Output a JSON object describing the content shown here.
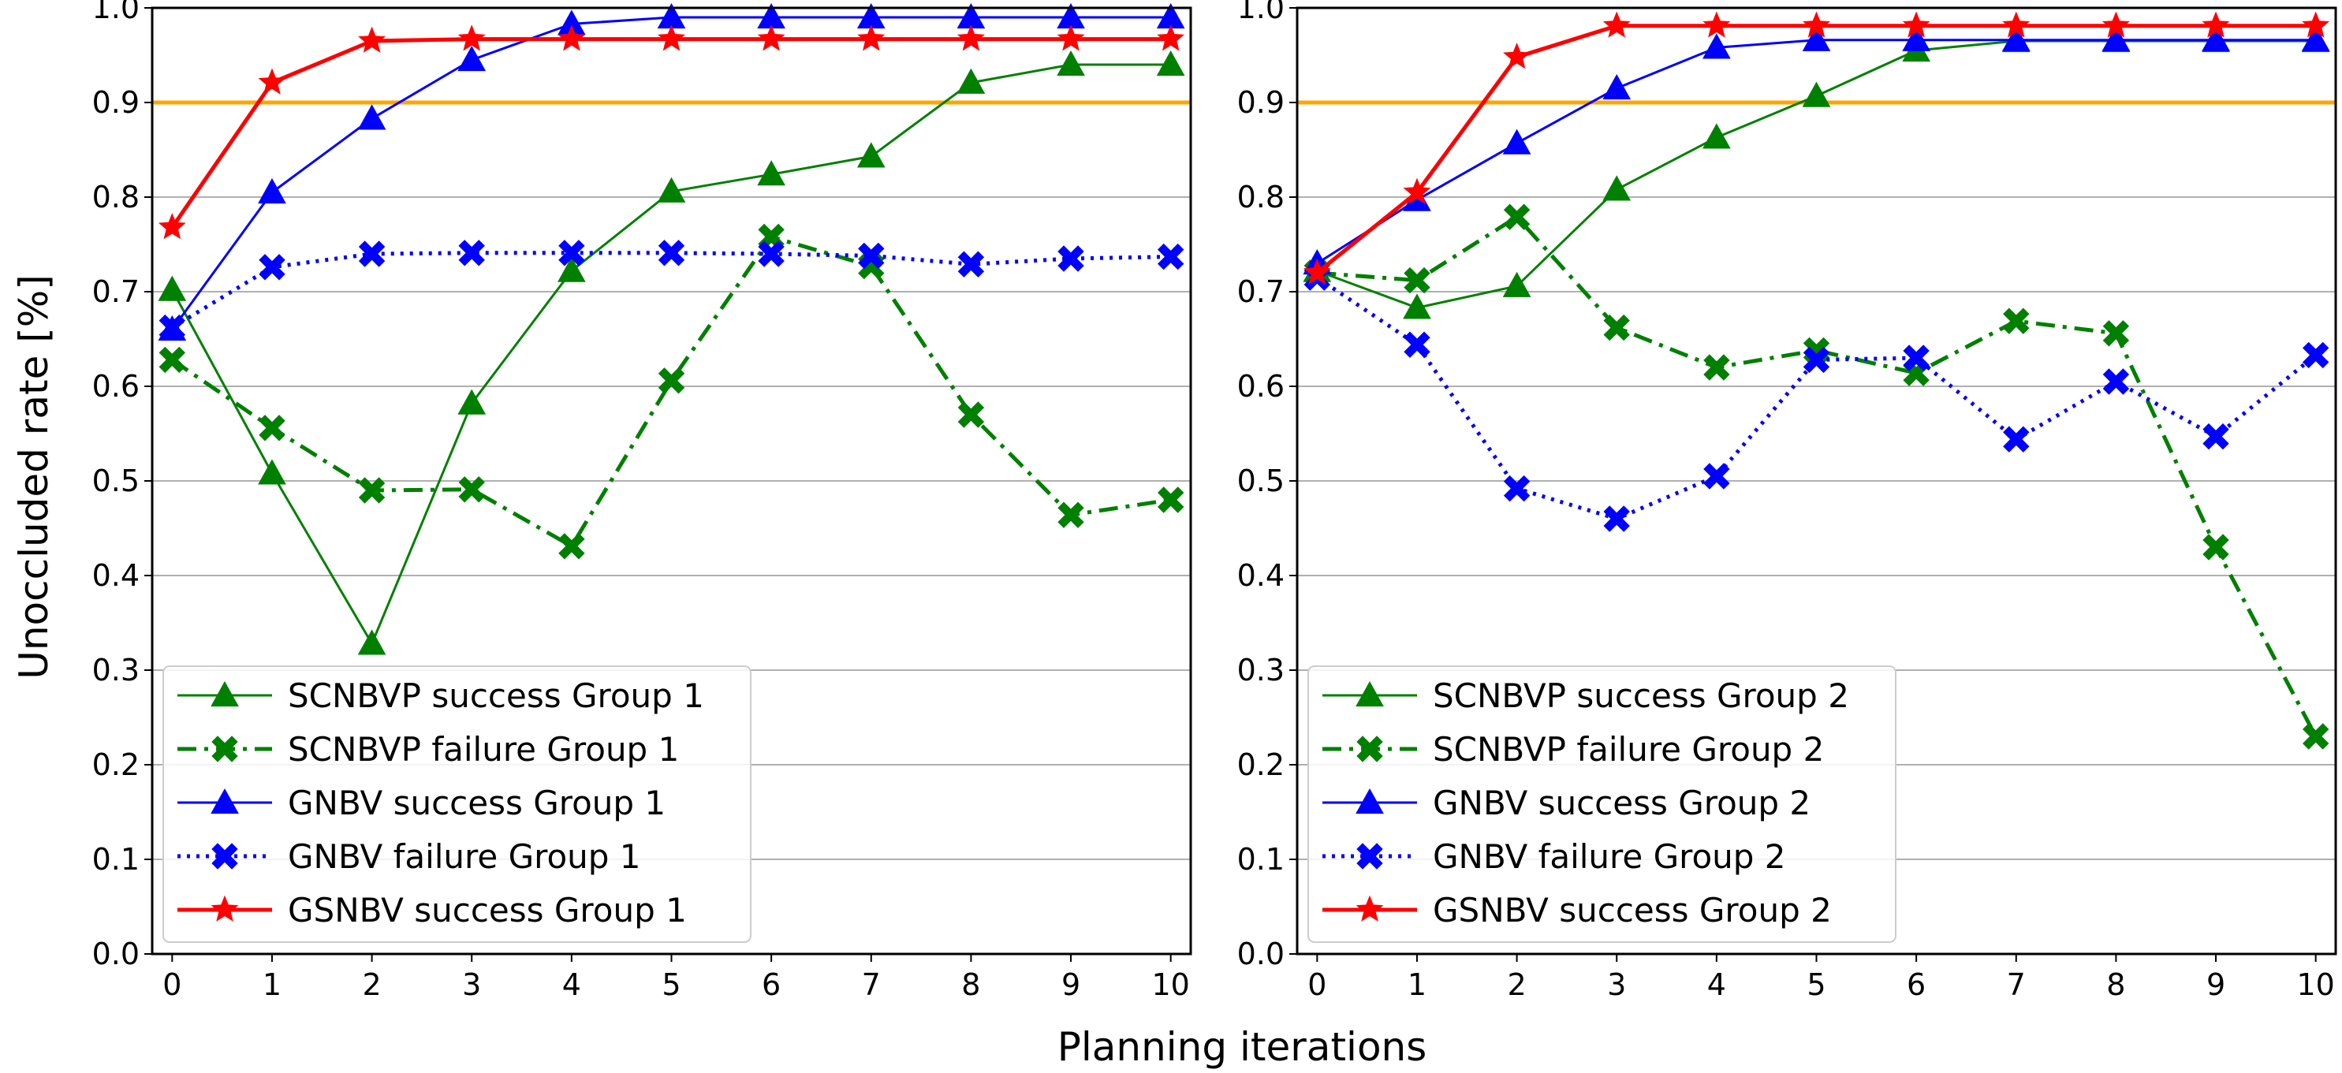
{
  "figure": {
    "ylabel": "Unoccluded rate [%]",
    "xlabel": "Planning iterations"
  },
  "chart_data": [
    {
      "type": "line",
      "title": "",
      "xlabel": "Planning iterations",
      "ylabel": "Unoccluded rate [%]",
      "xlim": [
        -0.2,
        10.2
      ],
      "ylim": [
        0.0,
        1.0
      ],
      "x": [
        0,
        1,
        2,
        3,
        4,
        5,
        6,
        7,
        8,
        9,
        10
      ],
      "xticks": [
        "0",
        "1",
        "2",
        "3",
        "4",
        "5",
        "6",
        "7",
        "8",
        "9",
        "10"
      ],
      "yticks": [
        "0.0",
        "0.1",
        "0.2",
        "0.3",
        "0.4",
        "0.5",
        "0.6",
        "0.7",
        "0.8",
        "0.9",
        "1.0"
      ],
      "grid": "horizontal",
      "threshold": {
        "y": 0.9,
        "color": "#ffa500"
      },
      "legend_position": "lower-left",
      "series": [
        {
          "name": "SCNBVP success Group 1",
          "color": "#008000",
          "style": "solid",
          "marker": "triangle",
          "values": [
            0.702,
            0.508,
            0.328,
            0.582,
            0.722,
            0.806,
            0.824,
            0.843,
            0.921,
            0.94,
            0.94
          ]
        },
        {
          "name": "SCNBVP failure Group 1",
          "color": "#008000",
          "style": "dashdot",
          "marker": "x",
          "values": [
            0.628,
            0.556,
            0.49,
            0.491,
            0.431,
            0.606,
            0.758,
            0.727,
            0.57,
            0.464,
            0.48
          ]
        },
        {
          "name": "GNBV success Group 1",
          "color": "#0000ff",
          "style": "solid",
          "marker": "triangle",
          "values": [
            0.66,
            0.805,
            0.883,
            0.945,
            0.983,
            0.99,
            0.99,
            0.99,
            0.99,
            0.99,
            0.99
          ]
        },
        {
          "name": "GNBV failure Group 1",
          "color": "#0000ff",
          "style": "dotted",
          "marker": "x",
          "values": [
            0.662,
            0.726,
            0.74,
            0.741,
            0.741,
            0.741,
            0.74,
            0.738,
            0.729,
            0.735,
            0.737
          ]
        },
        {
          "name": "GSNBV success Group 1",
          "color": "#ff0000",
          "style": "solid",
          "marker": "star",
          "values": [
            0.768,
            0.921,
            0.965,
            0.967,
            0.967,
            0.967,
            0.967,
            0.967,
            0.967,
            0.967,
            0.967
          ]
        }
      ]
    },
    {
      "type": "line",
      "title": "",
      "xlabel": "Planning iterations",
      "ylabel": "",
      "xlim": [
        -0.2,
        10.2
      ],
      "ylim": [
        0.0,
        1.0
      ],
      "x": [
        0,
        1,
        2,
        3,
        4,
        5,
        6,
        7,
        8,
        9,
        10
      ],
      "xticks": [
        "0",
        "1",
        "2",
        "3",
        "4",
        "5",
        "6",
        "7",
        "8",
        "9",
        "10"
      ],
      "yticks": [
        "0.0",
        "0.1",
        "0.2",
        "0.3",
        "0.4",
        "0.5",
        "0.6",
        "0.7",
        "0.8",
        "0.9",
        "1.0"
      ],
      "grid": "horizontal",
      "threshold": {
        "y": 0.9,
        "color": "#ffa500"
      },
      "legend_position": "lower-left",
      "series": [
        {
          "name": "SCNBVP success Group 2",
          "color": "#008000",
          "style": "solid",
          "marker": "triangle",
          "values": [
            0.722,
            0.683,
            0.706,
            0.808,
            0.863,
            0.907,
            0.955,
            0.965,
            0.965,
            0.965,
            0.965
          ]
        },
        {
          "name": "SCNBVP failure Group 2",
          "color": "#008000",
          "style": "dashdot",
          "marker": "x",
          "values": [
            0.72,
            0.712,
            0.779,
            0.662,
            0.62,
            0.638,
            0.614,
            0.669,
            0.656,
            0.43,
            0.23
          ]
        },
        {
          "name": "GNBV success Group 2",
          "color": "#0000ff",
          "style": "solid",
          "marker": "triangle",
          "values": [
            0.73,
            0.797,
            0.857,
            0.915,
            0.958,
            0.966,
            0.966,
            0.966,
            0.966,
            0.966,
            0.966
          ]
        },
        {
          "name": "GNBV failure Group 2",
          "color": "#0000ff",
          "style": "dotted",
          "marker": "x",
          "values": [
            0.715,
            0.644,
            0.492,
            0.46,
            0.505,
            0.628,
            0.63,
            0.544,
            0.605,
            0.547,
            0.633
          ]
        },
        {
          "name": "GSNBV success Group 2",
          "color": "#ff0000",
          "style": "solid",
          "marker": "star",
          "values": [
            0.72,
            0.805,
            0.948,
            0.981,
            0.981,
            0.981,
            0.981,
            0.981,
            0.981,
            0.981,
            0.981
          ]
        }
      ]
    }
  ]
}
